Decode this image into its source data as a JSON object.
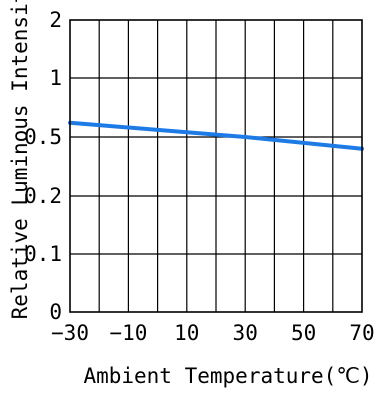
{
  "chart_data": {
    "type": "line",
    "xlabel": "Ambient Temperature(℃)",
    "ylabel": "Relative Luminous Intensit",
    "x_ticks": [
      "−30",
      "−10",
      "10",
      "30",
      "50",
      "70"
    ],
    "x_tick_values": [
      -30,
      -10,
      10,
      30,
      50,
      70
    ],
    "xlim": [
      -30,
      70
    ],
    "x_grid_step": 10,
    "y_ticks": [
      "0",
      "0.1",
      "0.2",
      "0.5",
      "1",
      "2"
    ],
    "y_categories_note": "",
    "grid": true,
    "series": [
      {
        "color": "#1e7be6",
        "points": [
          {
            "x": -30,
            "y": 0.62
          },
          {
            "x": 0,
            "y": 0.56
          },
          {
            "x": 30,
            "y": 0.5
          },
          {
            "x": 70,
            "y": 0.44
          }
        ]
      }
    ]
  }
}
